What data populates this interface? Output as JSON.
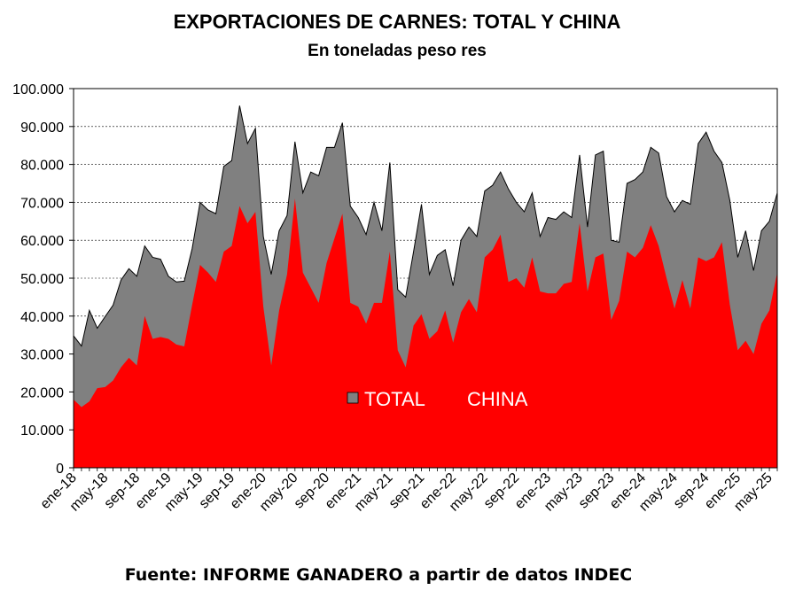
{
  "colors": {
    "total": "#808080",
    "china": "#ff0000",
    "axis": "#000000"
  },
  "chart_data": {
    "type": "area",
    "title": "EXPORTACIONES DE CARNES: TOTAL Y CHINA",
    "subtitle": "En toneladas peso res",
    "source": "Fuente: INFORME GANADERO a partir de datos INDEC",
    "ylim": [
      0,
      100000
    ],
    "y_ticks": [
      "0",
      "10.000",
      "20.000",
      "30.000",
      "40.000",
      "50.000",
      "60.000",
      "70.000",
      "80.000",
      "90.000",
      "100.000"
    ],
    "x_tick_labels": [
      "ene-18",
      "may-18",
      "sep-18",
      "ene-19",
      "may-19",
      "sep-19",
      "ene-20",
      "may-20",
      "sep-20",
      "ene-21",
      "may-21",
      "sep-21",
      "ene-22",
      "may-22",
      "sep-22",
      "ene-23",
      "may-23",
      "sep-23",
      "ene-24",
      "may-24",
      "sep-24",
      "ene-25",
      "may-25"
    ],
    "x_tick_step": 4,
    "grid": true,
    "legend": {
      "position": "center",
      "items": [
        "TOTAL",
        "CHINA"
      ]
    },
    "series": [
      {
        "name": "TOTAL",
        "values": [
          34800,
          32100,
          41500,
          36800,
          39900,
          42900,
          49500,
          52500,
          50500,
          58500,
          55500,
          55000,
          50500,
          49000,
          49200,
          57800,
          70000,
          68000,
          67000,
          79500,
          81000,
          95500,
          85500,
          89500,
          61000,
          51000,
          62500,
          66500,
          86000,
          72500,
          78000,
          77000,
          84500,
          84500,
          91000,
          69000,
          66000,
          61500,
          70000,
          62500,
          80500,
          47000,
          45000,
          57000,
          69500,
          51000,
          56000,
          57500,
          48000,
          60000,
          63500,
          61000,
          73000,
          74500,
          78000,
          73500,
          70000,
          67500,
          72500,
          61000,
          66000,
          65500,
          67500,
          66000,
          82500,
          63500,
          82500,
          83500,
          60000,
          59500,
          75000,
          76000,
          78000,
          84500,
          83000,
          71500,
          67500,
          70500,
          69500,
          85500,
          88500,
          83500,
          80500,
          70500,
          55500,
          62500,
          52000,
          62500,
          65000,
          72500
        ]
      },
      {
        "name": "CHINA",
        "values": [
          18000,
          16000,
          17500,
          21000,
          21300,
          23000,
          26500,
          29000,
          27000,
          40000,
          34000,
          34500,
          34000,
          32500,
          32000,
          43000,
          53500,
          51500,
          49000,
          57000,
          58500,
          69000,
          64500,
          67500,
          42500,
          27000,
          41500,
          51000,
          71000,
          51500,
          47500,
          43500,
          54000,
          60500,
          67000,
          43500,
          42500,
          38000,
          43500,
          43500,
          57000,
          31000,
          26500,
          37500,
          40500,
          34000,
          36000,
          41500,
          33000,
          41000,
          44500,
          41000,
          55500,
          57500,
          61500,
          49000,
          50000,
          47500,
          55500,
          46500,
          46000,
          46000,
          48500,
          49000,
          64500,
          46500,
          55500,
          56500,
          39000,
          44000,
          57000,
          55500,
          58000,
          64000,
          58500,
          50000,
          42000,
          49500,
          42000,
          55500,
          54500,
          55500,
          59500,
          43000,
          31000,
          33500,
          30000,
          38000,
          41500,
          51500
        ]
      }
    ]
  }
}
